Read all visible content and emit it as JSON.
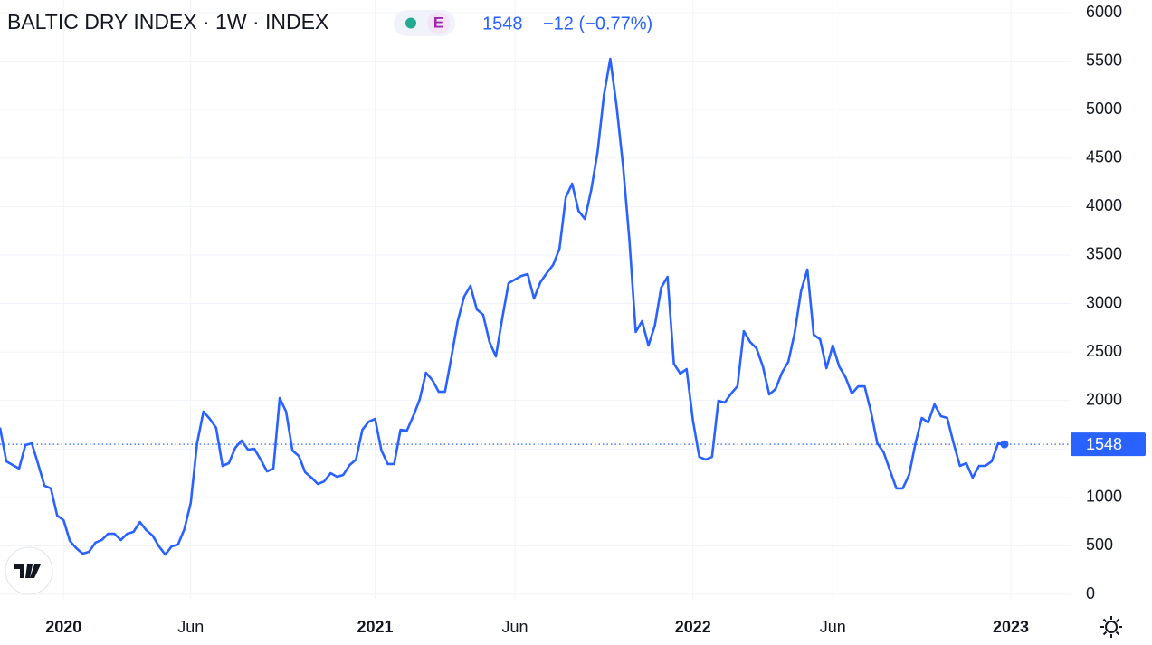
{
  "chart_data": {
    "type": "line",
    "title": "BALTIC DRY INDEX · 1W · INDEX",
    "badge": "E",
    "price": 1548,
    "change": "−12 (−0.77%)",
    "color": "#2962ff",
    "categories": [
      null,
      null,
      null,
      null,
      null,
      null,
      null,
      null,
      null,
      null,
      "2020",
      null,
      null,
      null,
      null,
      null,
      null,
      null,
      null,
      null,
      null,
      null,
      null,
      null,
      null,
      null,
      null,
      null,
      null,
      null,
      "Jun",
      null,
      null,
      null,
      null,
      null,
      null,
      null,
      null,
      null,
      null,
      null,
      null,
      null,
      null,
      null,
      null,
      null,
      null,
      null,
      null,
      null,
      null,
      null,
      null,
      null,
      null,
      null,
      null,
      "2021",
      null,
      null,
      null,
      null,
      null,
      null,
      null,
      null,
      null,
      null,
      null,
      null,
      null,
      null,
      null,
      null,
      null,
      null,
      null,
      null,
      null,
      "Jun",
      null,
      null,
      null,
      null,
      null,
      null,
      null,
      null,
      null,
      null,
      null,
      null,
      null,
      null,
      null,
      null,
      null,
      null,
      null,
      null,
      null,
      null,
      null,
      null,
      null,
      null,
      null,
      "2022",
      null,
      null,
      null,
      null,
      null,
      null,
      null,
      null,
      null,
      null,
      null,
      null,
      null,
      null,
      null,
      null,
      null,
      null,
      null,
      null,
      null,
      "Jun",
      null,
      null,
      null,
      null,
      null,
      null,
      null,
      null,
      null,
      null,
      null,
      null,
      null,
      null,
      null,
      null,
      null,
      null,
      null,
      null,
      null,
      null,
      null,
      null,
      null,
      null,
      null,
      "2023"
    ],
    "values": [
      1720,
      1372,
      1334,
      1297,
      1540,
      1558,
      1344,
      1120,
      1092,
      812,
      765,
      550,
      476,
      420,
      439,
      532,
      560,
      625,
      625,
      560,
      625,
      644,
      746,
      662,
      606,
      495,
      410,
      495,
      513,
      672,
      942,
      1558,
      1885,
      1810,
      1717,
      1325,
      1353,
      1512,
      1586,
      1493,
      1502,
      1390,
      1269,
      1297,
      2025,
      1885,
      1484,
      1428,
      1260,
      1204,
      1138,
      1166,
      1250,
      1213,
      1232,
      1334,
      1390,
      1698,
      1782,
      1810,
      1484,
      1344,
      1344,
      1698,
      1689,
      1838,
      2006,
      2286,
      2211,
      2090,
      2090,
      2445,
      2818,
      3070,
      3182,
      2939,
      2883,
      2603,
      2454,
      2846,
      3210,
      3247,
      3285,
      3303,
      3051,
      3219,
      3313,
      3397,
      3564,
      4096,
      4236,
      3956,
      3872,
      4171,
      4563,
      5151,
      5524,
      5029,
      4423,
      3658,
      2706,
      2818,
      2566,
      2771,
      3163,
      3275,
      2379,
      2277,
      2323,
      1792,
      1418,
      1390,
      1418,
      1997,
      1978,
      2071,
      2146,
      2715,
      2603,
      2538,
      2351,
      2062,
      2118,
      2286,
      2398,
      2697,
      3126,
      3350,
      2678,
      2631,
      2333,
      2566,
      2351,
      2239,
      2071,
      2146,
      2146,
      1885,
      1558,
      1465,
      1278,
      1092,
      1092,
      1232,
      1558,
      1820,
      1773,
      1960,
      1838,
      1820,
      1558,
      1325,
      1353,
      1204,
      1325,
      1325,
      1372,
      1558,
      1548,
      null
    ],
    "ylim": [
      0,
      6000
    ],
    "yticks": [
      0,
      500,
      1000,
      1500,
      2000,
      2500,
      3000,
      3500,
      4000,
      4500,
      5000,
      5500,
      6000
    ],
    "grid": true
  }
}
